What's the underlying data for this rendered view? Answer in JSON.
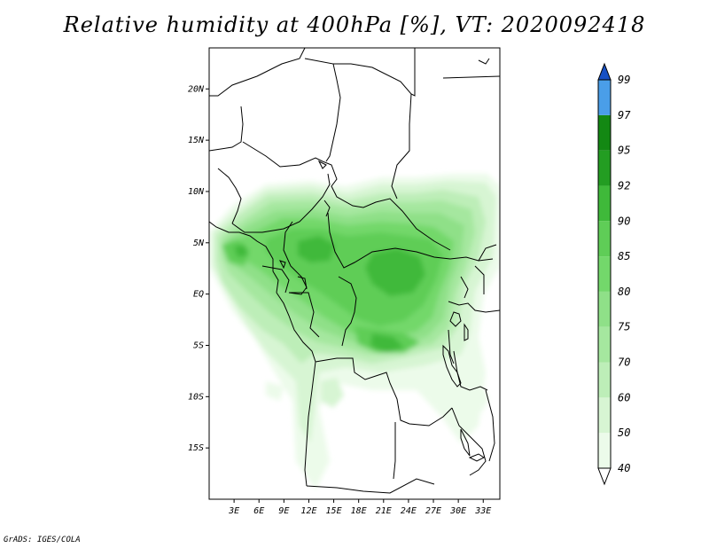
{
  "title": "Relative humidity at 400hPa [%], VT: 2020092418",
  "credit": "GrADS: IGES/COLA",
  "map": {
    "lon_range": [
      0,
      35
    ],
    "lat_range": [
      -20,
      24
    ],
    "lat_labels": [
      "20N",
      "15N",
      "10N",
      "5N",
      "EQ",
      "5S",
      "10S",
      "15S"
    ],
    "lat_values": [
      20,
      15,
      10,
      5,
      0,
      -5,
      -10,
      -15
    ],
    "lon_labels": [
      "3E",
      "6E",
      "9E",
      "12E",
      "15E",
      "18E",
      "21E",
      "24E",
      "27E",
      "30E",
      "33E"
    ],
    "lon_values": [
      3,
      6,
      9,
      12,
      15,
      18,
      21,
      24,
      27,
      30,
      33
    ]
  },
  "colorbar": {
    "labels": [
      "40",
      "50",
      "60",
      "70",
      "75",
      "80",
      "85",
      "90",
      "92",
      "95",
      "97",
      "99"
    ],
    "colors": [
      "#ecfbea",
      "#d7f5d3",
      "#bdeeb8",
      "#a5e79f",
      "#8fe088",
      "#73d86b",
      "#5fcd57",
      "#3fb93a",
      "#239d22",
      "#138813",
      "#4a9ee8",
      "#1f6fdd",
      "#1750c4"
    ],
    "bottom_cap_color": "#ffffff"
  }
}
